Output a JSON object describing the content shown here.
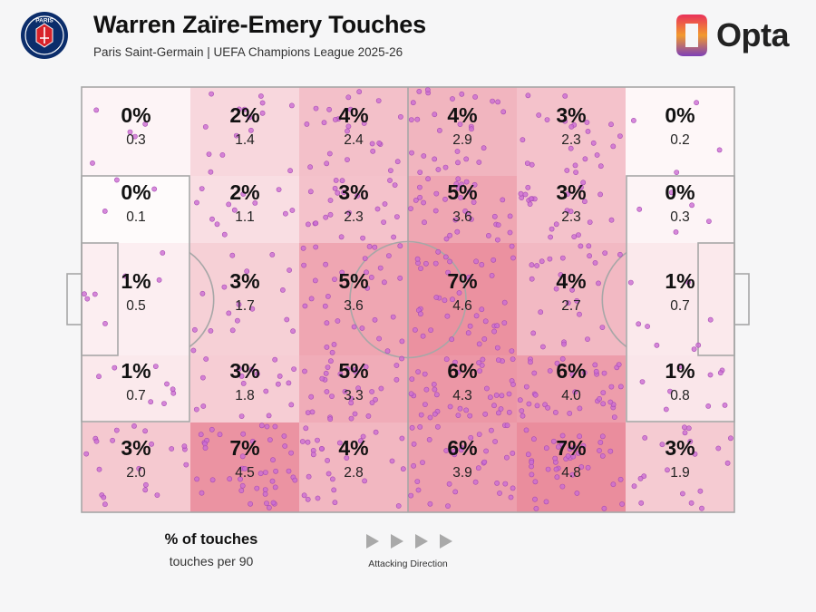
{
  "header": {
    "title": "Warren Zaïre-Emery Touches",
    "subtitle": "Paris Saint-Germain | UEFA Champions League 2025-26"
  },
  "club_logo": {
    "text": "PARIS",
    "colors": [
      "#0b2d6b",
      "#d8232a",
      "#ffffff"
    ]
  },
  "brand": {
    "text": "Opta",
    "colors": [
      "#e9315a",
      "#f29a2e",
      "#7d3fb8"
    ]
  },
  "legend": {
    "main": "% of touches",
    "sub": "touches per 90"
  },
  "direction": {
    "label": "Attacking Direction"
  },
  "colors": {
    "pitch_line": "#a7a7a7",
    "zone_base": "#ffffff",
    "zone_high": "#ea8d9d",
    "dot_fill": "#cc6dd3",
    "dot_stroke": "#a64bb2",
    "arrow": "#a9a9a9"
  },
  "chart_data": {
    "type": "heatmap",
    "title": "Warren Zaïre-Emery Touches",
    "value_labels": [
      "% of touches",
      "touches per 90"
    ],
    "rows": [
      {
        "pct": [
          "0%",
          "2%",
          "4%",
          "4%",
          "3%",
          "0%"
        ],
        "per90": [
          "0.3",
          "1.4",
          "2.4",
          "2.9",
          "2.3",
          "0.2"
        ]
      },
      {
        "pct": [
          "0%",
          "2%",
          "3%",
          "5%",
          "3%",
          "0%"
        ],
        "per90": [
          "0.1",
          "1.1",
          "2.3",
          "3.6",
          "2.3",
          "0.3"
        ]
      },
      {
        "pct": [
          "1%",
          "3%",
          "5%",
          "7%",
          "4%",
          "1%"
        ],
        "per90": [
          "0.5",
          "1.7",
          "3.6",
          "4.6",
          "2.7",
          "0.7"
        ]
      },
      {
        "pct": [
          "1%",
          "3%",
          "5%",
          "6%",
          "6%",
          "1%"
        ],
        "per90": [
          "0.7",
          "1.8",
          "3.3",
          "4.3",
          "4.0",
          "0.8"
        ]
      },
      {
        "pct": [
          "3%",
          "7%",
          "4%",
          "6%",
          "7%",
          "3%"
        ],
        "per90": [
          "2.0",
          "4.5",
          "2.8",
          "3.9",
          "4.8",
          "1.9"
        ]
      }
    ]
  }
}
